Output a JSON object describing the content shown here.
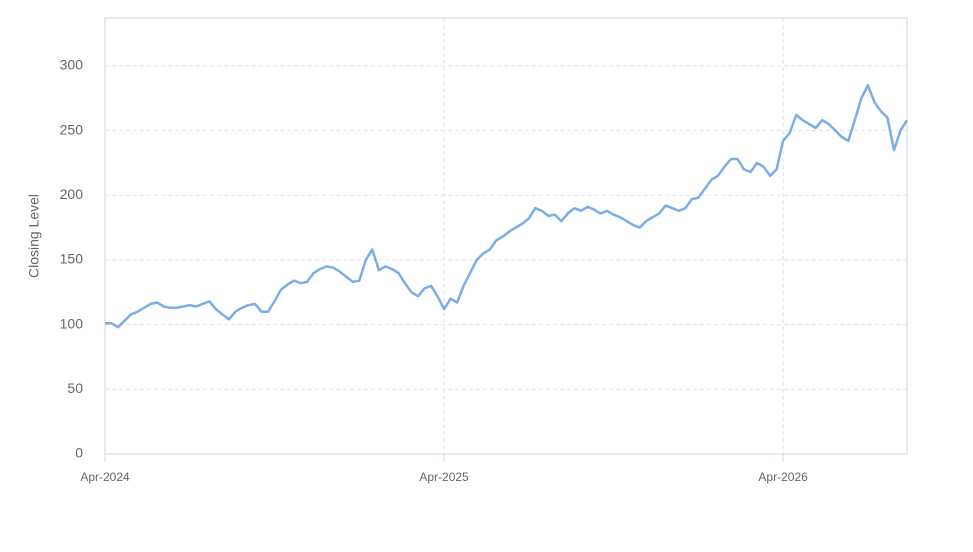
{
  "chart_data": {
    "type": "line",
    "y_label": "Closing Level",
    "categories": [
      "Apr-2024",
      null,
      null,
      null,
      null,
      null,
      null,
      null,
      null,
      null,
      null,
      null,
      null,
      null,
      null,
      null,
      null,
      null,
      null,
      null,
      null,
      null,
      null,
      null,
      null,
      null,
      null,
      null,
      null,
      null,
      null,
      null,
      null,
      null,
      null,
      null,
      null,
      null,
      null,
      null,
      null,
      null,
      null,
      null,
      null,
      null,
      null,
      null,
      null,
      null,
      null,
      null,
      "Apr-2025",
      null,
      null,
      null,
      null,
      null,
      null,
      null,
      null,
      null,
      null,
      null,
      null,
      null,
      null,
      null,
      null,
      null,
      null,
      null,
      null,
      null,
      null,
      null,
      null,
      null,
      null,
      null,
      null,
      null,
      null,
      null,
      null,
      null,
      null,
      null,
      null,
      null,
      null,
      null,
      null,
      null,
      null,
      null,
      null,
      null,
      null,
      null,
      null,
      null,
      null,
      null,
      "Apr-2026",
      null,
      null,
      null,
      null,
      null,
      null,
      null,
      null,
      null,
      null,
      null,
      null,
      null,
      null,
      null,
      null,
      null,
      null,
      null
    ],
    "values": [
      101,
      101,
      98,
      103,
      108,
      110,
      113,
      116,
      117,
      114,
      113,
      113,
      114,
      115,
      114,
      116,
      118,
      112,
      108,
      104,
      110,
      113,
      115,
      116,
      110,
      110,
      118,
      127,
      131,
      134,
      132,
      133,
      140,
      143,
      145,
      144,
      141,
      137,
      133,
      134,
      150,
      158,
      142,
      145,
      143,
      140,
      132,
      125,
      122,
      128,
      130,
      122,
      112,
      120,
      117,
      130,
      140,
      150,
      155,
      158,
      165,
      168,
      172,
      175,
      178,
      182,
      190,
      188,
      184,
      185,
      180,
      186,
      190,
      188,
      191,
      189,
      186,
      188,
      185,
      183,
      180,
      177,
      175,
      180,
      183,
      186,
      192,
      190,
      188,
      190,
      197,
      198,
      205,
      212,
      215,
      222,
      228,
      228,
      220,
      218,
      225,
      222,
      215,
      220,
      242,
      248,
      262,
      258,
      255,
      252,
      258,
      255,
      250,
      245,
      242,
      258,
      275,
      285,
      272,
      265,
      260,
      235,
      250,
      258
    ],
    "color": "#7aaee6",
    "ylim": [
      0,
      337
    ],
    "yticks": [
      0,
      50,
      100,
      150,
      200,
      250,
      300
    ],
    "grid": true
  }
}
